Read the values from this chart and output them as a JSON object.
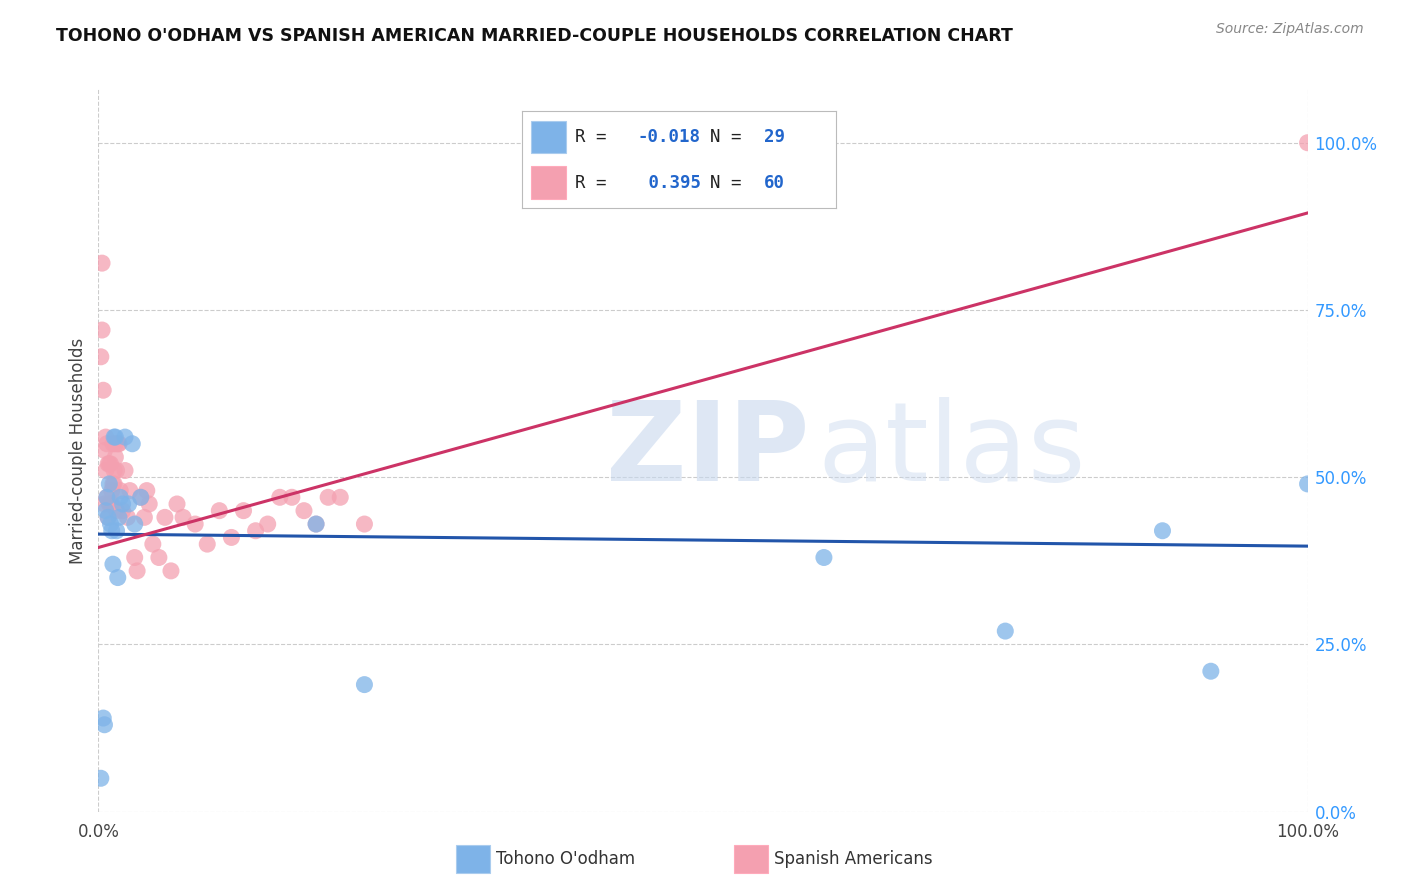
{
  "title": "TOHONO O'ODHAM VS SPANISH AMERICAN MARRIED-COUPLE HOUSEHOLDS CORRELATION CHART",
  "source": "Source: ZipAtlas.com",
  "ylabel": "Married-couple Households",
  "blue_color": "#7EB3E8",
  "pink_color": "#F4A0B0",
  "line_blue": "#2255AA",
  "line_pink": "#CC3366",
  "tohono_x": [
    0.002,
    0.004,
    0.005,
    0.006,
    0.007,
    0.008,
    0.009,
    0.01,
    0.011,
    0.012,
    0.013,
    0.014,
    0.015,
    0.016,
    0.017,
    0.018,
    0.02,
    0.022,
    0.025,
    0.028,
    0.03,
    0.035,
    0.18,
    0.22,
    0.6,
    0.75,
    0.88,
    0.92,
    1.0
  ],
  "tohono_y": [
    0.05,
    0.14,
    0.13,
    0.45,
    0.47,
    0.44,
    0.49,
    0.43,
    0.42,
    0.37,
    0.56,
    0.56,
    0.42,
    0.35,
    0.44,
    0.47,
    0.46,
    0.56,
    0.46,
    0.55,
    0.43,
    0.47,
    0.43,
    0.19,
    0.38,
    0.27,
    0.42,
    0.21,
    0.49
  ],
  "spanish_x": [
    0.002,
    0.003,
    0.003,
    0.004,
    0.005,
    0.005,
    0.006,
    0.006,
    0.007,
    0.007,
    0.008,
    0.008,
    0.009,
    0.009,
    0.01,
    0.01,
    0.011,
    0.011,
    0.012,
    0.012,
    0.013,
    0.013,
    0.014,
    0.014,
    0.015,
    0.015,
    0.016,
    0.017,
    0.018,
    0.02,
    0.022,
    0.024,
    0.026,
    0.03,
    0.032,
    0.035,
    0.038,
    0.04,
    0.042,
    0.045,
    0.05,
    0.055,
    0.06,
    0.065,
    0.07,
    0.08,
    0.09,
    0.1,
    0.11,
    0.12,
    0.13,
    0.14,
    0.15,
    0.16,
    0.17,
    0.18,
    0.19,
    0.2,
    0.22,
    1.0
  ],
  "spanish_y": [
    0.68,
    0.82,
    0.72,
    0.63,
    0.54,
    0.46,
    0.51,
    0.56,
    0.47,
    0.55,
    0.52,
    0.44,
    0.52,
    0.46,
    0.52,
    0.46,
    0.46,
    0.48,
    0.55,
    0.49,
    0.49,
    0.51,
    0.53,
    0.55,
    0.51,
    0.45,
    0.55,
    0.55,
    0.48,
    0.45,
    0.51,
    0.44,
    0.48,
    0.38,
    0.36,
    0.47,
    0.44,
    0.48,
    0.46,
    0.4,
    0.38,
    0.44,
    0.36,
    0.46,
    0.44,
    0.43,
    0.4,
    0.45,
    0.41,
    0.45,
    0.42,
    0.43,
    0.47,
    0.47,
    0.45,
    0.43,
    0.47,
    0.47,
    0.43,
    1.0
  ],
  "blue_line_x0": 0.0,
  "blue_line_x1": 1.0,
  "blue_line_y0": 0.415,
  "blue_line_y1": 0.397,
  "pink_line_x0": 0.0,
  "pink_line_x1": 1.0,
  "pink_line_y0": 0.395,
  "pink_line_y1": 0.895,
  "xlim": [
    0.0,
    1.0
  ],
  "ylim": [
    0.0,
    1.08
  ],
  "yticks": [
    0.0,
    0.25,
    0.5,
    0.75,
    1.0
  ],
  "ytick_labels": [
    "0.0%",
    "25.0%",
    "50.0%",
    "75.0%",
    "100.0%"
  ],
  "xtick_left_label": "0.0%",
  "xtick_right_label": "100.0%",
  "legend_r1": "R = -0.018",
  "legend_n1": "N = 29",
  "legend_r2": "R =  0.395",
  "legend_n2": "N = 60",
  "legend_bottom_1": "Tohono O'odham",
  "legend_bottom_2": "Spanish Americans"
}
